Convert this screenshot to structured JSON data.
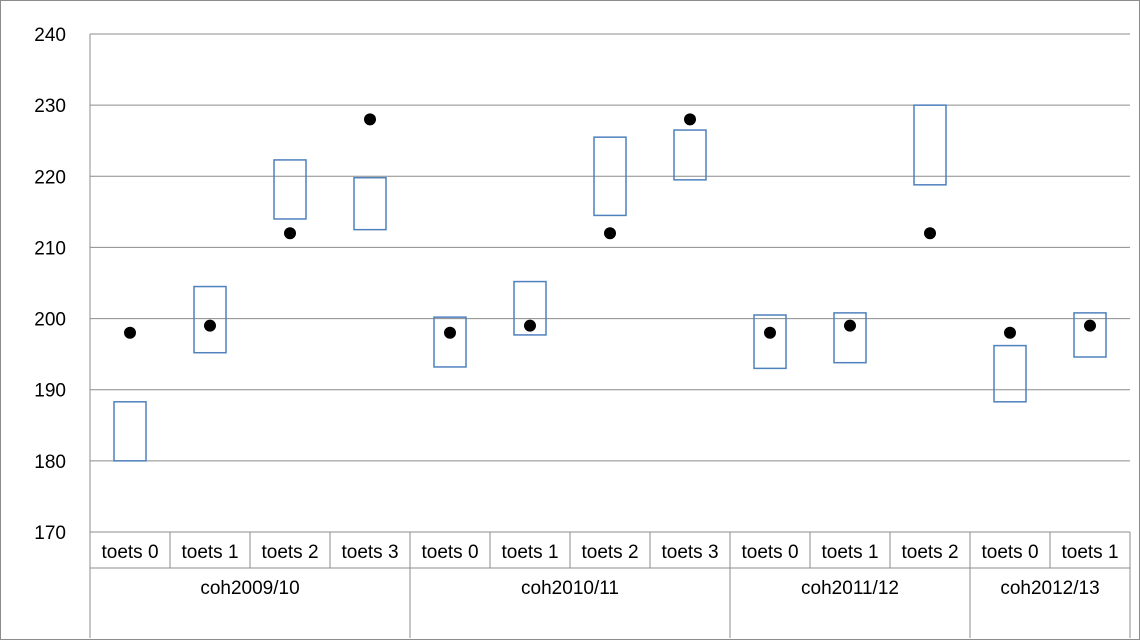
{
  "chart_data": {
    "type": "box",
    "ylim": [
      170,
      240
    ],
    "yticks": [
      170,
      180,
      190,
      200,
      210,
      220,
      230,
      240
    ],
    "grid": true,
    "colors": {
      "box": "#4f81bd",
      "dot": "#000000",
      "grid": "#8c8c8c",
      "axis": "#8c8c8c"
    },
    "groups": [
      {
        "label": "coh2009/10",
        "categories": [
          {
            "label": "toets 0",
            "low": 180,
            "high": 188.3,
            "dot": 198
          },
          {
            "label": "toets 1",
            "low": 195.2,
            "high": 204.5,
            "dot": 199
          },
          {
            "label": "toets 2",
            "low": 214,
            "high": 222.3,
            "dot": 212
          },
          {
            "label": "toets 3",
            "low": 212.5,
            "high": 219.8,
            "dot": 228
          }
        ]
      },
      {
        "label": "coh2010/11",
        "categories": [
          {
            "label": "toets 0",
            "low": 193.2,
            "high": 200.2,
            "dot": 198
          },
          {
            "label": "toets 1",
            "low": 197.7,
            "high": 205.2,
            "dot": 199
          },
          {
            "label": "toets 2",
            "low": 214.5,
            "high": 225.5,
            "dot": 212
          },
          {
            "label": "toets 3",
            "low": 219.5,
            "high": 226.5,
            "dot": 228
          }
        ]
      },
      {
        "label": "coh2011/12",
        "categories": [
          {
            "label": "toets 0",
            "low": 193,
            "high": 200.5,
            "dot": 198
          },
          {
            "label": "toets 1",
            "low": 193.8,
            "high": 200.8,
            "dot": 199
          },
          {
            "label": "toets 2",
            "low": 218.8,
            "high": 230,
            "dot": 212
          }
        ]
      },
      {
        "label": "coh2012/13",
        "categories": [
          {
            "label": "toets 0",
            "low": 188.3,
            "high": 196.2,
            "dot": 198
          },
          {
            "label": "toets 1",
            "low": 194.6,
            "high": 200.8,
            "dot": 199
          }
        ]
      }
    ]
  }
}
